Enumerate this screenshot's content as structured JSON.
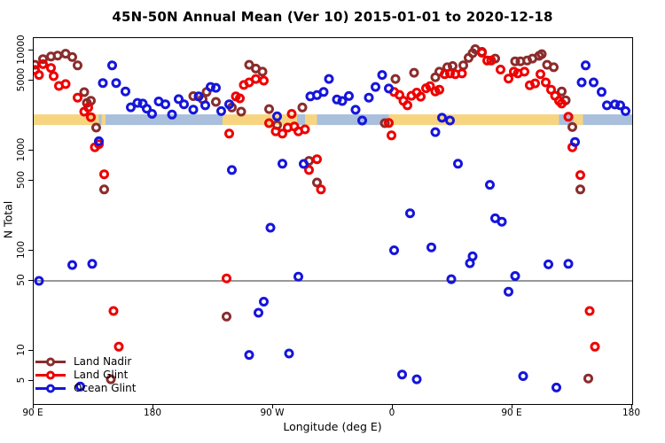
{
  "title": "45N-50N Annual Mean (Ver 10)   2015-01-01 to 2020-12-18",
  "chart_data": {
    "type": "scatter",
    "title": "45N-50N Annual Mean (Ver 10)   2015-01-01 to 2020-12-18",
    "xlabel": "Longitude (deg E)",
    "ylabel": "N Total",
    "x_axis": {
      "range": [
        90,
        540
      ],
      "tick_positions": [
        90,
        180,
        270,
        360,
        450,
        540
      ],
      "tick_labels": [
        "90 E",
        "180",
        "90 W",
        "0",
        "90 E",
        "180"
      ]
    },
    "y_axis": {
      "scale": "log10",
      "range": [
        3.5,
        13000
      ],
      "ticks": [
        10000,
        5000,
        1000,
        500,
        100,
        50,
        10,
        5
      ]
    },
    "reference_line": {
      "value": 50,
      "color": "#333333"
    },
    "surface_band": {
      "description": "land/ocean surface strip drawn near N=2000",
      "value_top": 2300,
      "value_bottom": 1800,
      "land_color": "#F7D580",
      "ocean_color": "#A9BFDC",
      "segments": [
        {
          "type": "land",
          "from": 90,
          "to": 139
        },
        {
          "type": "ocean",
          "from": 139,
          "to": 232
        },
        {
          "type": "land",
          "from": 232,
          "to": 303
        },
        {
          "type": "ocean",
          "from": 303,
          "to": 357
        },
        {
          "type": "land",
          "from": 357,
          "to": 485
        },
        {
          "type": "ocean",
          "from": 485,
          "to": 540
        },
        {
          "type": "land",
          "from": 141,
          "to": 144
        },
        {
          "type": "ocean",
          "from": 288,
          "to": 294
        },
        {
          "type": "land",
          "from": 496,
          "to": 503
        }
      ]
    },
    "legend": {
      "position": "bottom-left",
      "items": [
        "Land Nadir",
        "Land Glint",
        "Ocean Glint"
      ]
    },
    "series": [
      {
        "name": "Land Nadir",
        "color": "#8B2C2C",
        "points": [
          [
            91,
            7200
          ],
          [
            97,
            8200
          ],
          [
            103,
            8700
          ],
          [
            108,
            8900
          ],
          [
            114,
            9300
          ],
          [
            119,
            8600
          ],
          [
            123,
            7100
          ],
          [
            128,
            3840
          ],
          [
            130,
            3000
          ],
          [
            133,
            3150
          ],
          [
            137,
            1700
          ],
          [
            143,
            410
          ],
          [
            148,
            5.2
          ],
          [
            210,
            3500
          ],
          [
            217,
            3270
          ],
          [
            220,
            3850
          ],
          [
            227,
            3070
          ],
          [
            235,
            22
          ],
          [
            239,
            2700
          ],
          [
            246,
            2450
          ],
          [
            252,
            7200
          ],
          [
            257,
            6600
          ],
          [
            262,
            6150
          ],
          [
            267,
            2600
          ],
          [
            273,
            1800
          ],
          [
            292,
            2700
          ],
          [
            297,
            790
          ],
          [
            303,
            480
          ],
          [
            354,
            1880
          ],
          [
            362,
            5200
          ],
          [
            376,
            6000
          ],
          [
            392,
            5400
          ],
          [
            395,
            6150
          ],
          [
            401,
            6800
          ],
          [
            405,
            7000
          ],
          [
            413,
            7100
          ],
          [
            417,
            8450
          ],
          [
            420,
            9400
          ],
          [
            422,
            10300
          ],
          [
            427,
            9700
          ],
          [
            437,
            8300
          ],
          [
            452,
            7800
          ],
          [
            456,
            7800
          ],
          [
            461,
            7950
          ],
          [
            465,
            8300
          ],
          [
            470,
            8850
          ],
          [
            472,
            9200
          ],
          [
            476,
            7200
          ],
          [
            481,
            6800
          ],
          [
            487,
            3900
          ],
          [
            490,
            3180
          ],
          [
            495,
            1720
          ],
          [
            501,
            410
          ],
          [
            507,
            5.3
          ]
        ]
      },
      {
        "name": "Land Glint",
        "color": "#EE0000",
        "points": [
          [
            91,
            6400
          ],
          [
            94,
            5700
          ],
          [
            97,
            7300
          ],
          [
            103,
            6700
          ],
          [
            105,
            5550
          ],
          [
            109,
            4430
          ],
          [
            114,
            4620
          ],
          [
            123,
            3380
          ],
          [
            128,
            2450
          ],
          [
            131,
            2700
          ],
          [
            133,
            2160
          ],
          [
            136,
            1080
          ],
          [
            139,
            1160
          ],
          [
            143,
            580
          ],
          [
            150,
            25
          ],
          [
            154,
            11
          ],
          [
            235,
            53
          ],
          [
            237,
            1480
          ],
          [
            242,
            3480
          ],
          [
            245,
            3330
          ],
          [
            248,
            4530
          ],
          [
            252,
            4800
          ],
          [
            257,
            5200
          ],
          [
            263,
            5000
          ],
          [
            267,
            1880
          ],
          [
            272,
            1560
          ],
          [
            277,
            1480
          ],
          [
            281,
            1700
          ],
          [
            284,
            2330
          ],
          [
            286,
            1740
          ],
          [
            289,
            1560
          ],
          [
            294,
            1630
          ],
          [
            297,
            640
          ],
          [
            303,
            820
          ],
          [
            306,
            410
          ],
          [
            357,
            1890
          ],
          [
            359,
            1420
          ],
          [
            361,
            3850
          ],
          [
            365,
            3600
          ],
          [
            368,
            3140
          ],
          [
            371,
            2830
          ],
          [
            374,
            3530
          ],
          [
            378,
            3800
          ],
          [
            381,
            3460
          ],
          [
            385,
            4200
          ],
          [
            388,
            4400
          ],
          [
            392,
            3900
          ],
          [
            395,
            4060
          ],
          [
            399,
            5800
          ],
          [
            403,
            5900
          ],
          [
            407,
            5800
          ],
          [
            412,
            5900
          ],
          [
            427,
            9500
          ],
          [
            431,
            7950
          ],
          [
            434,
            7950
          ],
          [
            441,
            6450
          ],
          [
            447,
            5240
          ],
          [
            451,
            6150
          ],
          [
            454,
            5900
          ],
          [
            459,
            6150
          ],
          [
            463,
            4500
          ],
          [
            467,
            4700
          ],
          [
            471,
            5800
          ],
          [
            475,
            4800
          ],
          [
            479,
            4060
          ],
          [
            482,
            3530
          ],
          [
            485,
            3140
          ],
          [
            487,
            2950
          ],
          [
            492,
            2180
          ],
          [
            495,
            1080
          ],
          [
            501,
            570
          ],
          [
            508,
            25
          ],
          [
            512,
            11
          ]
        ]
      },
      {
        "name": "Ocean Glint",
        "color": "#1515DC",
        "points": [
          [
            94,
            50
          ],
          [
            119,
            72
          ],
          [
            125,
            4.4
          ],
          [
            134,
            74
          ],
          [
            139,
            1240
          ],
          [
            142,
            4730
          ],
          [
            149,
            7100
          ],
          [
            152,
            4730
          ],
          [
            159,
            3900
          ],
          [
            163,
            2710
          ],
          [
            168,
            3000
          ],
          [
            172,
            2950
          ],
          [
            175,
            2620
          ],
          [
            179,
            2330
          ],
          [
            184,
            3100
          ],
          [
            189,
            2900
          ],
          [
            194,
            2290
          ],
          [
            199,
            3270
          ],
          [
            203,
            2900
          ],
          [
            210,
            2570
          ],
          [
            214,
            3480
          ],
          [
            219,
            2830
          ],
          [
            223,
            4330
          ],
          [
            227,
            4240
          ],
          [
            231,
            2480
          ],
          [
            237,
            2900
          ],
          [
            239,
            640
          ],
          [
            252,
            9.1
          ],
          [
            259,
            24
          ],
          [
            263,
            31
          ],
          [
            268,
            170
          ],
          [
            273,
            2200
          ],
          [
            277,
            740
          ],
          [
            282,
            9.4
          ],
          [
            289,
            55
          ],
          [
            293,
            736
          ],
          [
            298,
            3480
          ],
          [
            303,
            3590
          ],
          [
            308,
            3850
          ],
          [
            312,
            5200
          ],
          [
            318,
            3240
          ],
          [
            322,
            3130
          ],
          [
            327,
            3510
          ],
          [
            332,
            2560
          ],
          [
            337,
            2000
          ],
          [
            342,
            3380
          ],
          [
            347,
            4330
          ],
          [
            352,
            5700
          ],
          [
            357,
            4170
          ],
          [
            361,
            101
          ],
          [
            367,
            5.8
          ],
          [
            373,
            237
          ],
          [
            378,
            5.2
          ],
          [
            389,
            108
          ],
          [
            392,
            1530
          ],
          [
            397,
            2130
          ],
          [
            403,
            2000
          ],
          [
            404,
            52
          ],
          [
            409,
            740
          ],
          [
            418,
            75
          ],
          [
            420,
            88
          ],
          [
            433,
            455
          ],
          [
            437,
            211
          ],
          [
            442,
            195
          ],
          [
            447,
            39
          ],
          [
            452,
            56
          ],
          [
            458,
            5.6
          ],
          [
            477,
            73
          ],
          [
            483,
            4.3
          ],
          [
            492,
            74
          ],
          [
            497,
            1220
          ],
          [
            502,
            4800
          ],
          [
            505,
            7100
          ],
          [
            511,
            4800
          ],
          [
            517,
            3850
          ],
          [
            521,
            2830
          ],
          [
            527,
            2890
          ],
          [
            531,
            2830
          ],
          [
            535,
            2480
          ]
        ]
      }
    ]
  }
}
